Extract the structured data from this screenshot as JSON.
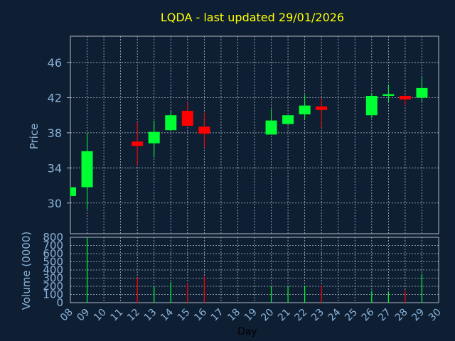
{
  "chart_data": {
    "type": "candlestick",
    "title": "LQDA - last updated 29/01/2026",
    "xlabel": "Day",
    "ylabel_price": "Price",
    "ylabel_volume": "Volume (0000)",
    "x_ticks": [
      "08",
      "09",
      "10",
      "11",
      "12",
      "13",
      "14",
      "15",
      "16",
      "17",
      "18",
      "19",
      "20",
      "21",
      "22",
      "23",
      "24",
      "25",
      "26",
      "27",
      "28",
      "29",
      "30"
    ],
    "price_ticks": [
      "30",
      "34",
      "38",
      "42",
      "46"
    ],
    "price_ylim": [
      26.5,
      49
    ],
    "volume_ticks": [
      "0",
      "100",
      "200",
      "300",
      "400",
      "500",
      "600",
      "700",
      "800"
    ],
    "volume_ylim": [
      0,
      800
    ],
    "colors": {
      "up": "#00ff33",
      "down": "#ff0000",
      "background": "#0f1f33",
      "grid": "#b0b8c4",
      "title": "#ffff00",
      "axis_label": "#8ab2d8"
    },
    "candles": [
      {
        "day": 8,
        "open": 30.8,
        "high": 31.8,
        "low": 30.7,
        "close": 31.8,
        "volume": 0
      },
      {
        "day": 9,
        "open": 31.8,
        "high": 38.0,
        "low": 29.3,
        "close": 35.9,
        "volume": 800
      },
      {
        "day": 12,
        "open": 37.0,
        "high": 39.2,
        "low": 34.3,
        "close": 36.5,
        "volume": 310
      },
      {
        "day": 13,
        "open": 36.8,
        "high": 39.4,
        "low": 35.2,
        "close": 38.1,
        "volume": 200
      },
      {
        "day": 14,
        "open": 38.3,
        "high": 40.5,
        "low": 38.2,
        "close": 40.0,
        "volume": 250
      },
      {
        "day": 15,
        "open": 40.5,
        "high": 41.5,
        "low": 38.8,
        "close": 38.8,
        "volume": 240
      },
      {
        "day": 16,
        "open": 38.7,
        "high": 40.3,
        "low": 36.3,
        "close": 37.9,
        "volume": 320
      },
      {
        "day": 20,
        "open": 37.8,
        "high": 40.7,
        "low": 37.8,
        "close": 39.4,
        "volume": 200
      },
      {
        "day": 21,
        "open": 39.0,
        "high": 40.0,
        "low": 39.0,
        "close": 40.0,
        "volume": 200
      },
      {
        "day": 22,
        "open": 40.1,
        "high": 42.3,
        "low": 39.5,
        "close": 41.1,
        "volume": 210
      },
      {
        "day": 23,
        "open": 41.0,
        "high": 42.0,
        "low": 38.6,
        "close": 40.6,
        "volume": 210
      },
      {
        "day": 26,
        "open": 40.0,
        "high": 42.5,
        "low": 39.7,
        "close": 42.2,
        "volume": 140
      },
      {
        "day": 27,
        "open": 42.2,
        "high": 43.5,
        "low": 41.5,
        "close": 42.4,
        "volume": 130
      },
      {
        "day": 28,
        "open": 42.2,
        "high": 42.3,
        "low": 41.1,
        "close": 41.8,
        "volume": 150
      },
      {
        "day": 29,
        "open": 42.0,
        "high": 44.3,
        "low": 41.5,
        "close": 43.1,
        "volume": 350
      }
    ]
  }
}
